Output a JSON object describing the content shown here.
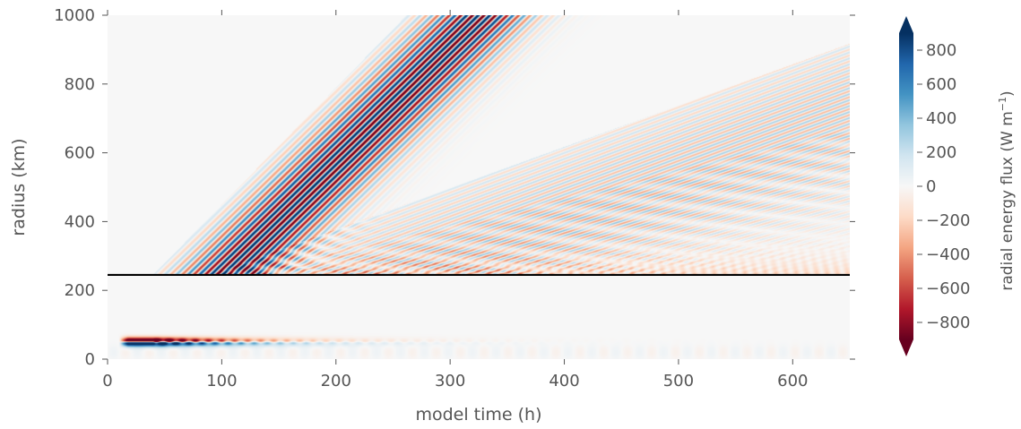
{
  "chart_data": {
    "type": "heatmap",
    "title": "",
    "xlabel": "model time (h)",
    "ylabel": "radius (km)",
    "xlim": [
      0,
      650
    ],
    "ylim": [
      0,
      1000
    ],
    "x_ticks": [
      0,
      100,
      200,
      300,
      400,
      500,
      600
    ],
    "y_ticks": [
      0,
      200,
      400,
      600,
      800,
      1000
    ],
    "grid": false,
    "colormap": "RdBu",
    "colorbar": {
      "label": "radial energy flux (W m",
      "label_superscript": "−1",
      "label_close": ")",
      "range": [
        -900,
        900
      ],
      "extend": "both",
      "ticks": [
        800,
        600,
        400,
        200,
        0,
        -200,
        -400,
        -600,
        -800
      ],
      "tick_labels": [
        "800",
        "600",
        "400",
        "200",
        "0",
        "−200",
        "−400",
        "−600",
        "−800"
      ]
    },
    "reference_line": {
      "y": 245,
      "color": "#000000"
    },
    "features": [
      {
        "kind": "inner-core-dipole",
        "x_range": [
          10,
          650
        ],
        "y_center": 50,
        "peak_positive": 900,
        "peak_negative": -900
      },
      {
        "kind": "outward-wave-packet-strong",
        "x_start": 50,
        "x_end": 300,
        "y_start": 245,
        "y_end": 1000,
        "peak": 900
      },
      {
        "kind": "outward-wave-packet-weak",
        "x_start": 100,
        "x_end": 650,
        "y_start": 245,
        "y_end": 1000,
        "peak": 300
      },
      {
        "kind": "negative-flux-band",
        "x_range": [
          150,
          650
        ],
        "y_range": [
          245,
          420
        ],
        "peak": -350
      }
    ]
  }
}
